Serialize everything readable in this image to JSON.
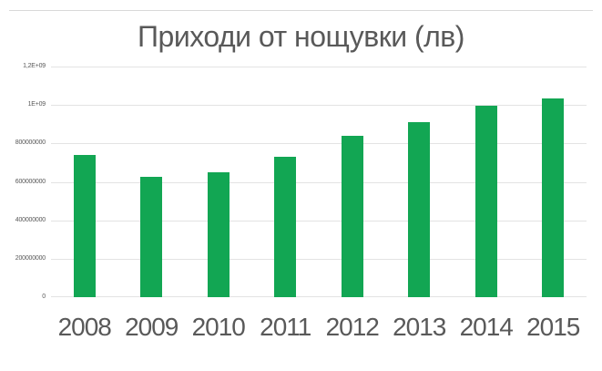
{
  "chart_data": {
    "type": "bar",
    "title": "Приходи от нощувки (лв)",
    "categories": [
      "2008",
      "2009",
      "2010",
      "2011",
      "2012",
      "2013",
      "2014",
      "2015"
    ],
    "values": [
      740000000,
      625000000,
      650000000,
      730000000,
      840000000,
      910000000,
      995000000,
      1035000000
    ],
    "xlabel": "",
    "ylabel": "",
    "ylim": [
      0,
      1200000000
    ],
    "ytick_labels": [
      "1,2E+09",
      "1E+09",
      "800000000",
      "600000000",
      "400000000",
      "200000000",
      "0"
    ],
    "grid": true,
    "legend": false,
    "colors": {
      "bar": "#12a653",
      "text": "#595959",
      "gridline": "#e3e3e3",
      "divider": "#d9d9d9"
    }
  }
}
